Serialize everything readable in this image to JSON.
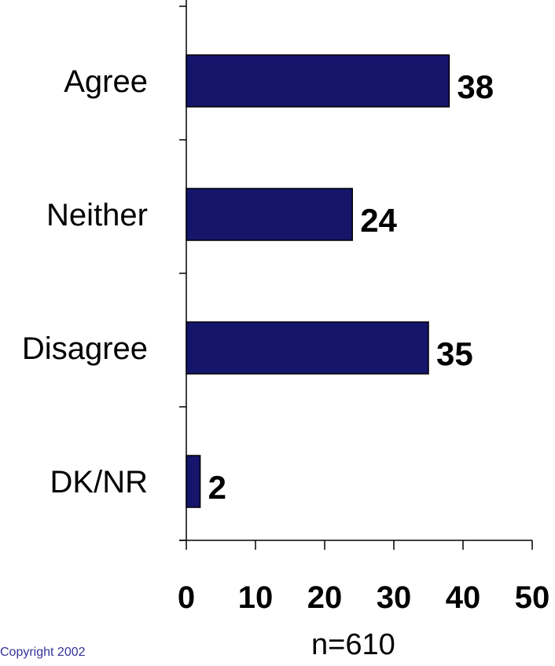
{
  "chart_data": {
    "type": "bar",
    "orientation": "horizontal",
    "categories": [
      "Agree",
      "Neither",
      "Disagree",
      "DK/NR"
    ],
    "values": [
      38,
      24,
      35,
      2
    ],
    "xlim": [
      0,
      50
    ],
    "x_ticks": [
      0,
      10,
      20,
      30,
      40,
      50
    ],
    "bar_color": "#15156b",
    "grid": false,
    "legend": "none"
  },
  "footer": {
    "copyright": "Copyright 2002",
    "sample_size": "n=610"
  }
}
